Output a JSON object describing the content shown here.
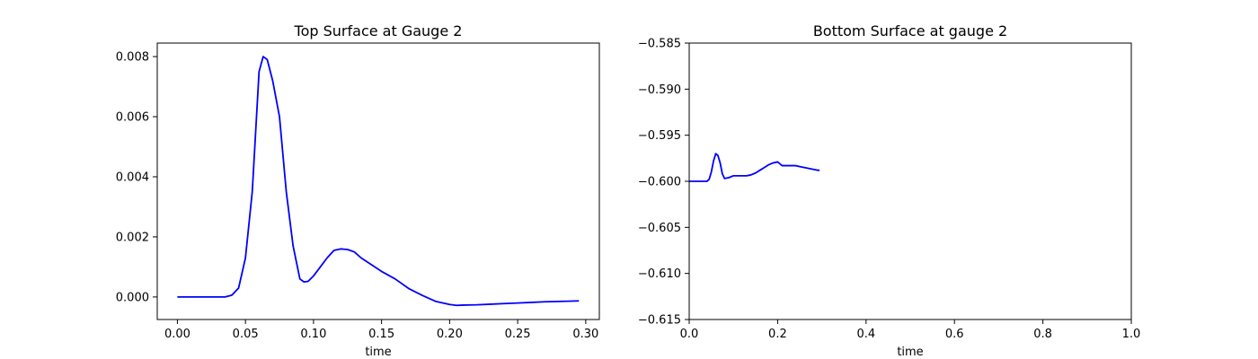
{
  "chart_data": [
    {
      "type": "line",
      "title": "Top Surface at Gauge 2",
      "xlabel": "time",
      "ylabel": "",
      "xlim": [
        -0.0148,
        0.31
      ],
      "ylim": [
        -0.00075,
        0.00845
      ],
      "xticks": [
        0.0,
        0.05,
        0.1,
        0.15,
        0.2,
        0.25,
        0.3
      ],
      "xtick_labels": [
        "0.00",
        "0.05",
        "0.10",
        "0.15",
        "0.20",
        "0.25",
        "0.30"
      ],
      "yticks": [
        0.0,
        0.002,
        0.004,
        0.006,
        0.008
      ],
      "ytick_labels": [
        "0.000",
        "0.002",
        "0.004",
        "0.006",
        "0.008"
      ],
      "grid": false,
      "series": [
        {
          "color": "#0000ff",
          "x": [
            0.0,
            0.035,
            0.04,
            0.045,
            0.05,
            0.055,
            0.06,
            0.063,
            0.066,
            0.07,
            0.075,
            0.08,
            0.085,
            0.09,
            0.093,
            0.096,
            0.1,
            0.105,
            0.11,
            0.115,
            0.12,
            0.125,
            0.13,
            0.135,
            0.14,
            0.145,
            0.15,
            0.16,
            0.17,
            0.18,
            0.19,
            0.2,
            0.205,
            0.21,
            0.22,
            0.23,
            0.24,
            0.25,
            0.26,
            0.27,
            0.28,
            0.295
          ],
          "y": [
            0.0,
            0.0,
            6e-05,
            0.0003,
            0.0013,
            0.0035,
            0.0075,
            0.008,
            0.0079,
            0.0072,
            0.006,
            0.0035,
            0.0017,
            0.0006,
            0.0005,
            0.00052,
            0.0007,
            0.001,
            0.0013,
            0.00155,
            0.0016,
            0.00158,
            0.0015,
            0.0013,
            0.00115,
            0.001,
            0.00085,
            0.0006,
            0.00028,
            5e-05,
            -0.00015,
            -0.00025,
            -0.00028,
            -0.00027,
            -0.00026,
            -0.00024,
            -0.00022,
            -0.0002,
            -0.00018,
            -0.00016,
            -0.00015,
            -0.00013
          ]
        }
      ]
    },
    {
      "type": "line",
      "title": "Bottom Surface at gauge 2",
      "xlabel": "time",
      "ylabel": "",
      "xlim": [
        0.0,
        1.0
      ],
      "ylim": [
        -0.615,
        -0.585
      ],
      "xticks": [
        0.0,
        0.2,
        0.4,
        0.6,
        0.8,
        1.0
      ],
      "xtick_labels": [
        "0.0",
        "0.2",
        "0.4",
        "0.6",
        "0.8",
        "1.0"
      ],
      "yticks": [
        -0.615,
        -0.61,
        -0.605,
        -0.6,
        -0.595,
        -0.59,
        -0.585
      ],
      "ytick_labels": [
        "−0.615",
        "−0.610",
        "−0.605",
        "−0.600",
        "−0.595",
        "−0.590",
        "−0.585"
      ],
      "grid": false,
      "series": [
        {
          "color": "#0000ff",
          "x": [
            0.0,
            0.04,
            0.045,
            0.05,
            0.055,
            0.06,
            0.065,
            0.07,
            0.075,
            0.08,
            0.09,
            0.1,
            0.11,
            0.12,
            0.13,
            0.14,
            0.15,
            0.16,
            0.17,
            0.18,
            0.19,
            0.2,
            0.205,
            0.21,
            0.22,
            0.23,
            0.24,
            0.25,
            0.26,
            0.27,
            0.28,
            0.29,
            0.295
          ],
          "y": [
            -0.6,
            -0.6,
            -0.5998,
            -0.599,
            -0.5978,
            -0.597,
            -0.5972,
            -0.598,
            -0.5992,
            -0.5997,
            -0.5996,
            -0.5994,
            -0.5994,
            -0.5994,
            -0.5994,
            -0.5993,
            -0.5991,
            -0.5988,
            -0.5985,
            -0.5982,
            -0.598,
            -0.5979,
            -0.5981,
            -0.5983,
            -0.5983,
            -0.5983,
            -0.5983,
            -0.5984,
            -0.5985,
            -0.5986,
            -0.5987,
            -0.5988,
            -0.5988
          ]
        }
      ]
    }
  ]
}
